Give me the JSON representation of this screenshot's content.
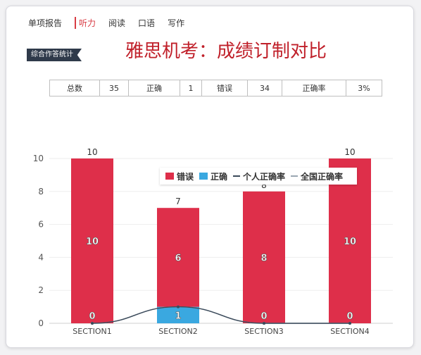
{
  "tabs": [
    "单项报告",
    "听力",
    "阅读",
    "口语",
    "写作"
  ],
  "active_tab": "听力",
  "tag": "综合作答统计",
  "headline": "雅思机考：成绩订制对比",
  "stats": [
    {
      "label": "总数",
      "value": "35"
    },
    {
      "label": "正确",
      "value": "1"
    },
    {
      "label": "错误",
      "value": "34"
    },
    {
      "label": "正确率",
      "value": "3%"
    }
  ],
  "colors": {
    "wrong": "#de2f4a",
    "right": "#3aa8e0",
    "personal": "#3b4a5a",
    "national": "#9aa6b2"
  },
  "chart_data": {
    "type": "bar",
    "categories": [
      "SECTION1",
      "SECTION2",
      "SECTION3",
      "SECTION4"
    ],
    "series": [
      {
        "name": "错误",
        "values": [
          10,
          6,
          8,
          10
        ]
      },
      {
        "name": "正确",
        "values": [
          0,
          1,
          0,
          0
        ]
      },
      {
        "name": "个人正确率",
        "values": [
          0,
          1,
          0,
          0
        ]
      },
      {
        "name": "全国正确率",
        "values": [
          0,
          1,
          0,
          0
        ]
      }
    ],
    "totals": [
      10,
      7,
      8,
      10
    ],
    "ylim": [
      0,
      10
    ],
    "yticks": [
      0,
      2,
      4,
      6,
      8,
      10
    ],
    "legend": "top-right",
    "grid": true
  }
}
